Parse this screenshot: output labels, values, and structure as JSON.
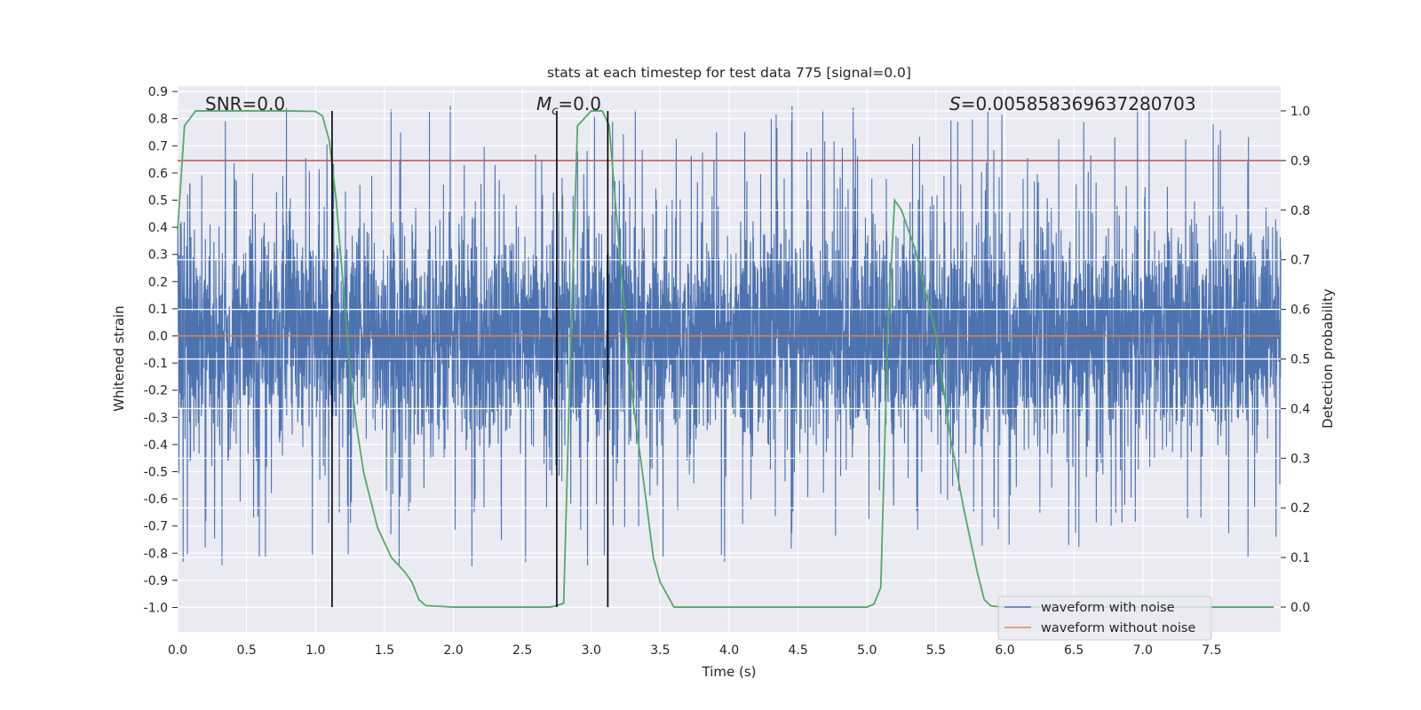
{
  "chart_data": {
    "type": "line",
    "title": "stats at each timestep for test data 775 [signal=0.0]",
    "xlabel": "Time (s)",
    "ylabel": "Whitened strain",
    "y2label": "Detection probability",
    "xlim": [
      0.0,
      8.0
    ],
    "ylim": [
      -1.09,
      0.92
    ],
    "y2lim": [
      -0.05,
      1.05
    ],
    "xticks": [
      "0.0",
      "0.5",
      "1.0",
      "1.5",
      "2.0",
      "2.5",
      "3.0",
      "3.5",
      "4.0",
      "4.5",
      "5.0",
      "5.5",
      "6.0",
      "6.5",
      "7.0",
      "7.5"
    ],
    "yticks": [
      "0.9",
      "0.8",
      "0.7",
      "0.6",
      "0.5",
      "0.4",
      "0.3",
      "0.2",
      "0.1",
      "0.0",
      "-0.1",
      "-0.2",
      "-0.3",
      "-0.4",
      "-0.5",
      "-0.6",
      "-0.7",
      "-0.8",
      "-0.9",
      "-1.0"
    ],
    "y2ticks": [
      "1.0",
      "0.9",
      "0.8",
      "0.7",
      "0.6",
      "0.5",
      "0.4",
      "0.3",
      "0.2",
      "0.1",
      "0.0"
    ],
    "grid": true,
    "annotations": {
      "snr": "SNR=0.0",
      "mc_symbol": "M",
      "mc_sub": "c",
      "mc_value": "=0.0",
      "s_symbol": "S",
      "s_value": "=0.005858369637280703"
    },
    "legend": {
      "placement": "lower-right",
      "entries": [
        {
          "name": "waveform with noise",
          "color": "#4c72b0"
        },
        {
          "name": "waveform without noise",
          "color": "#dd8452"
        }
      ]
    },
    "series": [
      {
        "name": "waveform with noise",
        "color": "#4c72b0",
        "style": "noise",
        "duration": 8.0,
        "envelope_typical": [
          -0.45,
          0.55
        ],
        "envelope_peak": [
          -1.0,
          0.86
        ]
      },
      {
        "name": "waveform without noise",
        "color": "#dd8452",
        "constant": 0.0
      },
      {
        "name": "detection probability",
        "color": "#55a868",
        "axis": "right",
        "x": [
          0.0,
          0.05,
          0.13,
          0.25,
          0.4,
          0.6,
          0.8,
          1.0,
          1.05,
          1.1,
          1.15,
          1.2,
          1.25,
          1.3,
          1.35,
          1.45,
          1.55,
          1.65,
          1.7,
          1.75,
          1.8,
          2.0,
          2.3,
          2.6,
          2.7,
          2.75,
          2.8,
          2.85,
          2.9,
          3.0,
          3.08,
          3.13,
          3.2,
          3.3,
          3.4,
          3.45,
          3.5,
          3.6,
          4.0,
          4.5,
          4.9,
          5.0,
          5.05,
          5.1,
          5.15,
          5.2,
          5.25,
          5.35,
          5.5,
          5.6,
          5.7,
          5.8,
          5.85,
          5.9,
          6.0,
          7.0,
          7.95
        ],
        "y": [
          0.76,
          0.97,
          1.0,
          1.0,
          1.0,
          1.0,
          1.0,
          0.999,
          0.99,
          0.94,
          0.82,
          0.65,
          0.48,
          0.36,
          0.27,
          0.16,
          0.1,
          0.07,
          0.05,
          0.015,
          0.003,
          0.0,
          0.0,
          0.0,
          0.0,
          0.003,
          0.008,
          0.52,
          0.97,
          1.0,
          1.0,
          0.97,
          0.73,
          0.42,
          0.21,
          0.1,
          0.05,
          0.0,
          0.0,
          0.0,
          0.0,
          0.0,
          0.006,
          0.04,
          0.55,
          0.82,
          0.8,
          0.72,
          0.55,
          0.35,
          0.2,
          0.07,
          0.015,
          0.002,
          0.0,
          0.0,
          0.0
        ]
      },
      {
        "name": "threshold",
        "color": "#c44e52",
        "axis": "right",
        "constant": 0.9
      },
      {
        "name": "detection boundaries",
        "color": "#000000",
        "axis": "right",
        "x": [
          1.12,
          2.75,
          3.12
        ],
        "y_range": [
          0.0,
          1.0
        ]
      }
    ]
  }
}
